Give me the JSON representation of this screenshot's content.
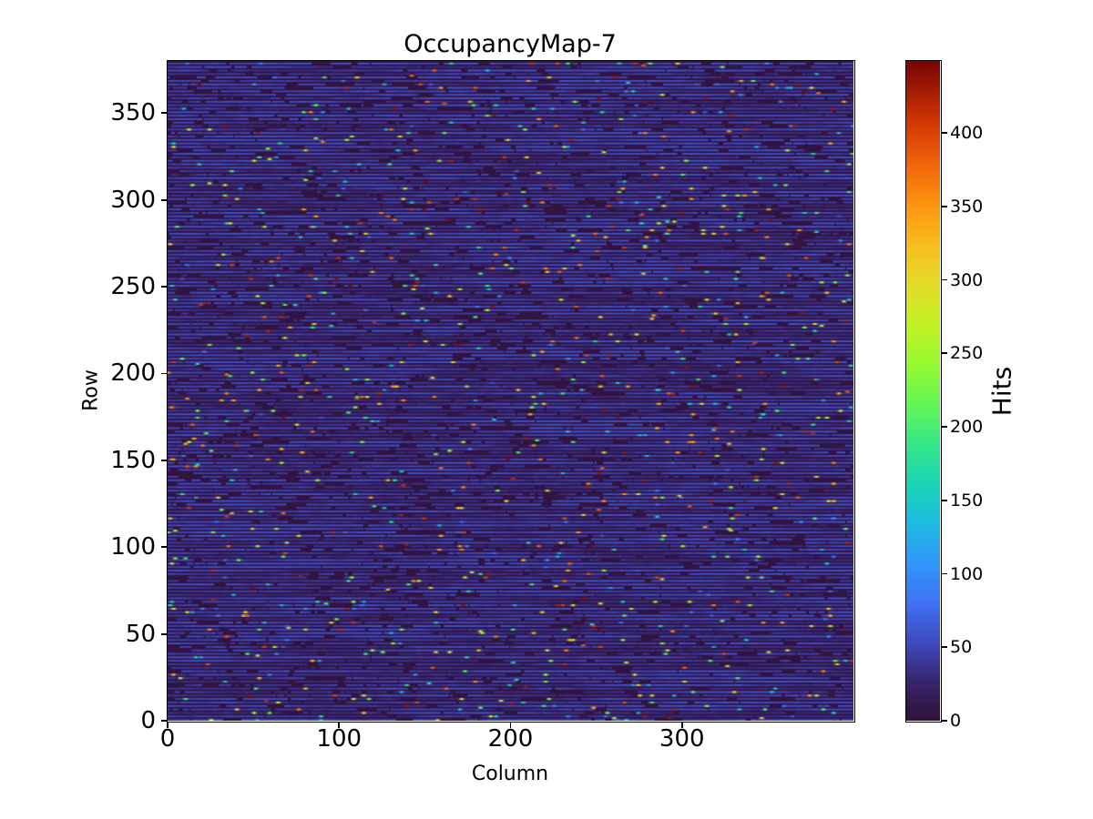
{
  "title": "OccupancyMap-7",
  "colors": {
    "background": "#ffffff",
    "text": "#000000",
    "spine": "#000000"
  },
  "axes": {
    "xlabel": "Column",
    "ylabel": "Row",
    "x_ticks": [
      0,
      100,
      200,
      300
    ],
    "y_ticks": [
      0,
      50,
      100,
      150,
      200,
      250,
      300,
      350
    ],
    "x_range": [
      0,
      400
    ],
    "y_range": [
      0,
      380
    ]
  },
  "colorbar": {
    "label": "Hits",
    "ticks": [
      0,
      50,
      100,
      150,
      200,
      250,
      300,
      350,
      400
    ],
    "vmin": 0,
    "vmax": 449
  },
  "chart_data": {
    "type": "heatmap",
    "title": "OccupancyMap-7",
    "xlabel": "Column",
    "ylabel": "Row",
    "colorbar_label": "Hits",
    "colormap": "turbo",
    "grid": {
      "ncols": 400,
      "nrows": 380
    },
    "value_range": [
      0,
      449
    ],
    "x_ticks": [
      0,
      100,
      200,
      300
    ],
    "y_ticks": [
      0,
      50,
      100,
      150,
      200,
      250,
      300,
      350
    ],
    "colorbar_ticks": [
      0,
      50,
      100,
      150,
      200,
      250,
      300,
      350,
      400
    ],
    "legend": "none",
    "grid_lines": "off",
    "pattern": {
      "description": "Alternating horizontal stripes: even rows are blue segments (~30-60 hits) broken by short dark gaps; odd rows are near-zero dark background; about 1.3% of stripe cells are bright high-value hits (60-449) rendered as scattered small colored dots (cyan/green/yellow/orange/red); rare hot dots also occur on background rows.",
      "seed": 7,
      "stripe_value_range": [
        30,
        60
      ],
      "background_value": 3,
      "gap_enter_probability": 0.03,
      "gap_exit_probability": 0.22,
      "stripe_start_on_probability": 0.85,
      "stripe_spike_probability": 0.013,
      "background_spike_probability": 0.0015,
      "spike_value_range": [
        60,
        449
      ],
      "background_spike_value_range": [
        150,
        449
      ]
    }
  }
}
